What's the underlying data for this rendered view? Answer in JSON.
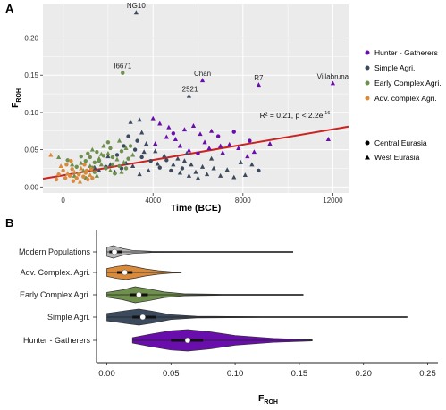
{
  "colors": {
    "hunter": "#6a0dad",
    "simple": "#3c4a5e",
    "early": "#6f8f4d",
    "adv": "#d98a3a",
    "modern": "#b5b5b5",
    "trend": "#cc2222",
    "panel_bg": "#ebebeb",
    "grid": "#ffffff"
  },
  "chart_data": [
    {
      "type": "scatter",
      "panel_label": "A",
      "xlabel": "Time (BCE)",
      "ylabel_main": "F",
      "ylabel_sub": "ROH",
      "xlim": [
        -900,
        12700
      ],
      "ylim": [
        -0.008,
        0.245
      ],
      "x_ticks": [
        0,
        4000,
        8000,
        12000
      ],
      "x_tick_labels": [
        "0",
        "4000",
        "8000",
        "12000"
      ],
      "y_ticks": [
        0.0,
        0.05,
        0.1,
        0.15,
        0.2
      ],
      "y_tick_labels": [
        "0.00",
        "0.05",
        "0.10",
        "0.15",
        "0.20"
      ],
      "grid": true,
      "legend_placement": "right",
      "legend": {
        "groups": [
          {
            "name": "Hunter - Gatherers",
            "color_key": "hunter"
          },
          {
            "name": "Simple Agri.",
            "color_key": "simple"
          },
          {
            "name": "Early Complex Agri.",
            "color_key": "early"
          },
          {
            "name": "Adv. complex Agri.",
            "color_key": "adv"
          }
        ],
        "regions": [
          {
            "name": "Central Eurasia",
            "shape": "circle"
          },
          {
            "name": "West Eurasia",
            "shape": "triangle"
          }
        ]
      },
      "regression_line": {
        "x": [
          -900,
          12700
        ],
        "y": [
          0.011,
          0.081
        ],
        "color_key": "trend"
      },
      "stat_annotation": {
        "text": "R² = 0.21, p < 2.2e",
        "superscript": "-16"
      },
      "labeled_points": [
        {
          "label": "NG10",
          "x": 3250,
          "y": 0.234,
          "group": "simple",
          "shape": "triangle"
        },
        {
          "label": "I6671",
          "x": 2650,
          "y": 0.153,
          "group": "early",
          "shape": "circle"
        },
        {
          "label": "Chan",
          "x": 6200,
          "y": 0.143,
          "group": "hunter",
          "shape": "triangle"
        },
        {
          "label": "R7",
          "x": 8700,
          "y": 0.137,
          "group": "hunter",
          "shape": "triangle"
        },
        {
          "label": "Villabruna",
          "x": 12000,
          "y": 0.139,
          "group": "hunter",
          "shape": "triangle"
        },
        {
          "label": "I2521",
          "x": 5600,
          "y": 0.122,
          "group": "simple",
          "shape": "triangle"
        }
      ],
      "series": [
        {
          "name": "Hunter - Gatherers",
          "color_key": "hunter",
          "points": [
            [
              4000,
              0.092,
              "t"
            ],
            [
              4300,
              0.085,
              "t"
            ],
            [
              4700,
              0.08,
              "t"
            ],
            [
              5400,
              0.077,
              "t"
            ],
            [
              5800,
              0.082,
              "t"
            ],
            [
              6100,
              0.071,
              "t"
            ],
            [
              6600,
              0.075,
              "t"
            ],
            [
              4600,
              0.067,
              "t"
            ],
            [
              5000,
              0.064,
              "t"
            ],
            [
              4100,
              0.058,
              "t"
            ],
            [
              5200,
              0.055,
              "t"
            ],
            [
              5600,
              0.049,
              "t"
            ],
            [
              6300,
              0.06,
              "t"
            ],
            [
              7000,
              0.055,
              "t"
            ],
            [
              7400,
              0.057,
              "t"
            ],
            [
              7800,
              0.052,
              "t"
            ],
            [
              8500,
              0.047,
              "t"
            ],
            [
              8200,
              0.041,
              "t"
            ],
            [
              9200,
              0.058,
              "t"
            ],
            [
              11800,
              0.064,
              "t"
            ],
            [
              4900,
              0.072,
              "c"
            ],
            [
              6900,
              0.068,
              "c"
            ],
            [
              7600,
              0.074,
              "c"
            ],
            [
              8300,
              0.062,
              "c"
            ],
            [
              6000,
              0.045,
              "c"
            ],
            [
              7100,
              0.046,
              "t"
            ],
            [
              6500,
              0.052,
              "t"
            ]
          ]
        },
        {
          "name": "Simple Agri.",
          "color_key": "simple",
          "points": [
            [
              3000,
              0.087,
              "t"
            ],
            [
              3400,
              0.09,
              "t"
            ],
            [
              3500,
              0.073,
              "t"
            ],
            [
              2900,
              0.068,
              "c"
            ],
            [
              3300,
              0.062,
              "c"
            ],
            [
              3700,
              0.058,
              "t"
            ],
            [
              2700,
              0.055,
              "c"
            ],
            [
              4100,
              0.048,
              "t"
            ],
            [
              4500,
              0.042,
              "t"
            ],
            [
              5100,
              0.038,
              "t"
            ],
            [
              5400,
              0.035,
              "t"
            ],
            [
              5700,
              0.03,
              "t"
            ],
            [
              6200,
              0.027,
              "t"
            ],
            [
              6700,
              0.025,
              "t"
            ],
            [
              7300,
              0.023,
              "t"
            ],
            [
              4300,
              0.026,
              "c"
            ],
            [
              4800,
              0.022,
              "c"
            ],
            [
              5200,
              0.019,
              "t"
            ],
            [
              5600,
              0.015,
              "t"
            ],
            [
              6000,
              0.012,
              "t"
            ],
            [
              3800,
              0.022,
              "t"
            ],
            [
              3400,
              0.017,
              "t"
            ],
            [
              3100,
              0.028,
              "t"
            ],
            [
              2800,
              0.032,
              "t"
            ],
            [
              2600,
              0.025,
              "c"
            ],
            [
              2300,
              0.02,
              "t"
            ],
            [
              2100,
              0.03,
              "t"
            ],
            [
              1900,
              0.027,
              "c"
            ],
            [
              1600,
              0.022,
              "t"
            ],
            [
              1400,
              0.026,
              "t"
            ],
            [
              3500,
              0.04,
              "c"
            ],
            [
              3900,
              0.035,
              "c"
            ],
            [
              4200,
              0.031,
              "t"
            ],
            [
              4900,
              0.03,
              "t"
            ],
            [
              5300,
              0.025,
              "c"
            ],
            [
              5900,
              0.02,
              "t"
            ],
            [
              6400,
              0.017,
              "t"
            ],
            [
              7000,
              0.015,
              "t"
            ],
            [
              7600,
              0.013,
              "t"
            ],
            [
              8100,
              0.016,
              "t"
            ],
            [
              8700,
              0.022,
              "c"
            ],
            [
              8400,
              0.03,
              "t"
            ],
            [
              7900,
              0.033,
              "t"
            ],
            [
              2400,
              0.043,
              "c"
            ],
            [
              2000,
              0.041,
              "t"
            ],
            [
              6600,
              0.038,
              "t"
            ],
            [
              4600,
              0.036,
              "c"
            ],
            [
              5500,
              0.045,
              "t"
            ],
            [
              3600,
              0.047,
              "t"
            ],
            [
              3200,
              0.05,
              "c"
            ]
          ]
        },
        {
          "name": "Early Complex Agri.",
          "color_key": "early",
          "points": [
            [
              -200,
              0.04,
              "t"
            ],
            [
              200,
              0.036,
              "c"
            ],
            [
              400,
              0.03,
              "t"
            ],
            [
              600,
              0.027,
              "c"
            ],
            [
              800,
              0.032,
              "t"
            ],
            [
              1000,
              0.035,
              "c"
            ],
            [
              1200,
              0.028,
              "t"
            ],
            [
              1400,
              0.033,
              "c"
            ],
            [
              1600,
              0.038,
              "t"
            ],
            [
              1800,
              0.042,
              "c"
            ],
            [
              2000,
              0.045,
              "t"
            ],
            [
              2200,
              0.04,
              "c"
            ],
            [
              2400,
              0.037,
              "t"
            ],
            [
              2600,
              0.048,
              "c"
            ],
            [
              2800,
              0.052,
              "t"
            ],
            [
              3000,
              0.055,
              "c"
            ],
            [
              1100,
              0.045,
              "c"
            ],
            [
              1300,
              0.05,
              "t"
            ],
            [
              1500,
              0.047,
              "c"
            ],
            [
              1700,
              0.03,
              "t"
            ],
            [
              1900,
              0.025,
              "c"
            ],
            [
              2100,
              0.022,
              "t"
            ],
            [
              2300,
              0.018,
              "c"
            ],
            [
              900,
              0.022,
              "t"
            ],
            [
              700,
              0.018,
              "c"
            ],
            [
              500,
              0.015,
              "t"
            ],
            [
              1000,
              0.012,
              "c"
            ],
            [
              1500,
              0.015,
              "t"
            ],
            [
              2500,
              0.028,
              "c"
            ],
            [
              2700,
              0.033,
              "t"
            ],
            [
              2900,
              0.038,
              "c"
            ],
            [
              3100,
              0.043,
              "t"
            ],
            [
              2000,
              0.06,
              "c"
            ],
            [
              2500,
              0.062,
              "t"
            ],
            [
              1800,
              0.055,
              "t"
            ],
            [
              1200,
              0.04,
              "c"
            ],
            [
              1600,
              0.035,
              "c"
            ],
            [
              2200,
              0.03,
              "t"
            ],
            [
              2600,
              0.02,
              "t"
            ],
            [
              1400,
              0.02,
              "c"
            ],
            [
              800,
              0.041,
              "c"
            ],
            [
              1300,
              0.026,
              "c"
            ],
            [
              2100,
              0.052,
              "c"
            ],
            [
              1700,
              0.044,
              "t"
            ],
            [
              2800,
              0.025,
              "c"
            ]
          ]
        },
        {
          "name": "Adv. complex Agri.",
          "color_key": "adv",
          "points": [
            [
              -200,
              0.017,
              "c"
            ],
            [
              -100,
              0.028,
              "t"
            ],
            [
              0,
              0.022,
              "c"
            ],
            [
              100,
              0.012,
              "c"
            ],
            [
              200,
              0.018,
              "t"
            ],
            [
              300,
              0.015,
              "c"
            ],
            [
              400,
              0.024,
              "c"
            ],
            [
              500,
              0.02,
              "t"
            ],
            [
              600,
              0.012,
              "c"
            ],
            [
              700,
              0.017,
              "c"
            ],
            [
              800,
              0.025,
              "t"
            ],
            [
              900,
              0.014,
              "c"
            ],
            [
              1000,
              0.019,
              "c"
            ],
            [
              1100,
              0.01,
              "c"
            ],
            [
              1200,
              0.016,
              "t"
            ],
            [
              1300,
              0.012,
              "c"
            ],
            [
              150,
              0.03,
              "c"
            ],
            [
              450,
              0.008,
              "c"
            ],
            [
              750,
              0.007,
              "t"
            ],
            [
              1050,
              0.022,
              "c"
            ],
            [
              -300,
              0.01,
              "c"
            ],
            [
              350,
              0.035,
              "c"
            ],
            [
              950,
              0.03,
              "c"
            ],
            [
              -550,
              0.043,
              "t"
            ],
            [
              1250,
              0.024,
              "c"
            ]
          ]
        }
      ]
    },
    {
      "type": "violin",
      "panel_label": "B",
      "xlabel_main": "F",
      "xlabel_sub": "ROH",
      "xlim": [
        -0.008,
        0.258
      ],
      "x_ticks": [
        0.0,
        0.05,
        0.1,
        0.15,
        0.2,
        0.25
      ],
      "x_tick_labels": [
        "0.00",
        "0.05",
        "0.10",
        "0.15",
        "0.20",
        "0.25"
      ],
      "categories": [
        "Modern Populations",
        "Adv. Complex. Agri.",
        "Early Complex Agri.",
        "Simple Agri.",
        "Hunter - Gatherers"
      ],
      "color_keys": [
        "modern",
        "adv",
        "early",
        "simple",
        "hunter"
      ],
      "medians": [
        0.006,
        0.014,
        0.025,
        0.028,
        0.063
      ],
      "q1": [
        0.002,
        0.008,
        0.018,
        0.02,
        0.05
      ],
      "q3": [
        0.012,
        0.02,
        0.032,
        0.038,
        0.075
      ],
      "min": [
        0.0,
        0.0,
        0.0,
        0.0,
        0.02
      ],
      "max": [
        0.145,
        0.058,
        0.153,
        0.234,
        0.16
      ],
      "density_profiles": [
        [
          [
            0,
            0.7
          ],
          [
            0.005,
            1.0
          ],
          [
            0.012,
            0.55
          ],
          [
            0.02,
            0.25
          ],
          [
            0.035,
            0.1
          ],
          [
            0.06,
            0.05
          ],
          [
            0.1,
            0.025
          ],
          [
            0.145,
            0.015
          ]
        ],
        [
          [
            0,
            0.55
          ],
          [
            0.008,
            0.85
          ],
          [
            0.015,
            1.0
          ],
          [
            0.022,
            0.8
          ],
          [
            0.03,
            0.5
          ],
          [
            0.04,
            0.25
          ],
          [
            0.05,
            0.1
          ],
          [
            0.058,
            0.04
          ]
        ],
        [
          [
            0,
            0.3
          ],
          [
            0.012,
            0.6
          ],
          [
            0.022,
            1.0
          ],
          [
            0.032,
            0.75
          ],
          [
            0.045,
            0.35
          ],
          [
            0.06,
            0.12
          ],
          [
            0.09,
            0.04
          ],
          [
            0.153,
            0.01
          ]
        ],
        [
          [
            0,
            0.45
          ],
          [
            0.015,
            0.8
          ],
          [
            0.025,
            1.0
          ],
          [
            0.035,
            0.75
          ],
          [
            0.05,
            0.3
          ],
          [
            0.07,
            0.1
          ],
          [
            0.12,
            0.02
          ],
          [
            0.234,
            0.008
          ]
        ],
        [
          [
            0.02,
            0.25
          ],
          [
            0.035,
            0.6
          ],
          [
            0.05,
            0.9
          ],
          [
            0.063,
            1.0
          ],
          [
            0.08,
            0.8
          ],
          [
            0.1,
            0.45
          ],
          [
            0.13,
            0.18
          ],
          [
            0.16,
            0.06
          ]
        ]
      ]
    }
  ]
}
